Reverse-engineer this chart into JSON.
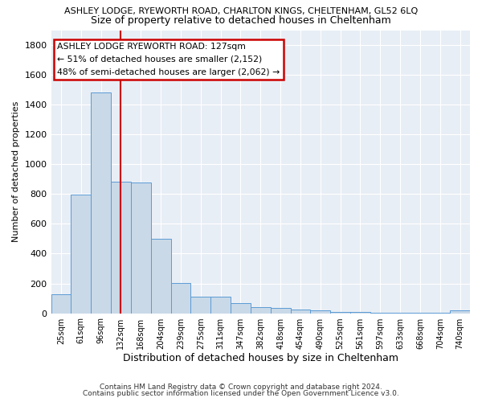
{
  "title": "ASHLEY LODGE, RYEWORTH ROAD, CHARLTON KINGS, CHELTENHAM, GL52 6LQ",
  "subtitle": "Size of property relative to detached houses in Cheltenham",
  "xlabel": "Distribution of detached houses by size in Cheltenham",
  "ylabel": "Number of detached properties",
  "bar_color": "#c9d9e8",
  "bar_edge_color": "#5b9bd5",
  "bg_color": "#e8eef5",
  "grid_color": "#ffffff",
  "fig_bg_color": "#ffffff",
  "categories": [
    "25sqm",
    "61sqm",
    "96sqm",
    "132sqm",
    "168sqm",
    "204sqm",
    "239sqm",
    "275sqm",
    "311sqm",
    "347sqm",
    "382sqm",
    "418sqm",
    "454sqm",
    "490sqm",
    "525sqm",
    "561sqm",
    "597sqm",
    "633sqm",
    "668sqm",
    "704sqm",
    "740sqm"
  ],
  "values": [
    127,
    797,
    1484,
    884,
    880,
    497,
    205,
    110,
    110,
    68,
    42,
    35,
    25,
    20,
    10,
    8,
    5,
    5,
    5,
    5,
    18
  ],
  "vline_index": 3,
  "vline_color": "#cc0000",
  "annotation_text": "ASHLEY LODGE RYEWORTH ROAD: 127sqm\n← 51% of detached houses are smaller (2,152)\n48% of semi-detached houses are larger (2,062) →",
  "annotation_box_color": "#ffffff",
  "annotation_box_edge": "#cc0000",
  "ylim": [
    0,
    1900
  ],
  "yticks": [
    0,
    200,
    400,
    600,
    800,
    1000,
    1200,
    1400,
    1600,
    1800
  ],
  "footnote1": "Contains HM Land Registry data © Crown copyright and database right 2024.",
  "footnote2": "Contains public sector information licensed under the Open Government Licence v3.0."
}
